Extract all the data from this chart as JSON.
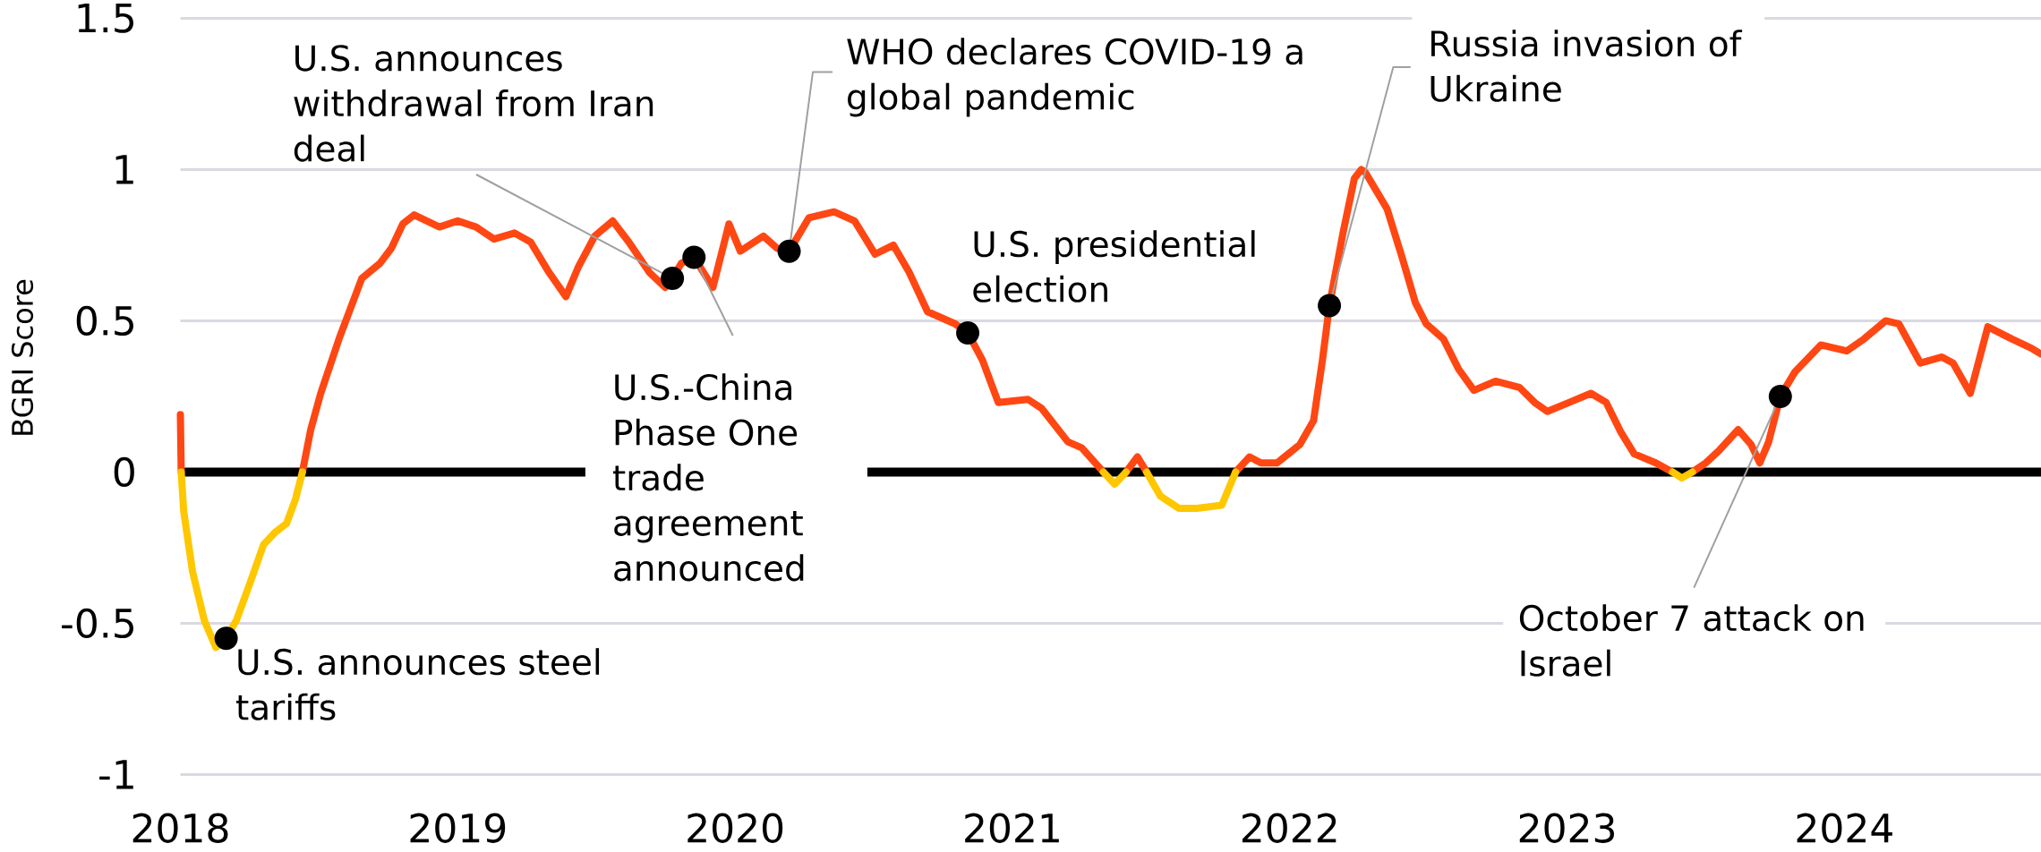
{
  "chart_data": {
    "type": "line",
    "ylabel": "BGRI Score",
    "x": [
      2018.0,
      2018.003,
      2018.012,
      2018.044,
      2018.086,
      2018.128,
      2018.165,
      2018.202,
      2018.25,
      2018.3,
      2018.341,
      2018.383,
      2018.415,
      2018.44,
      2018.47,
      2018.506,
      2018.572,
      2018.654,
      2018.72,
      2018.761,
      2018.802,
      2018.843,
      2018.934,
      2019.0,
      2019.066,
      2019.131,
      2019.205,
      2019.263,
      2019.329,
      2019.39,
      2019.436,
      2019.494,
      2019.559,
      2019.617,
      2019.691,
      2019.748,
      2019.774,
      2019.806,
      2019.852,
      2019.92,
      2019.978,
      2020.019,
      2020.102,
      2020.151,
      2020.195,
      2020.266,
      2020.357,
      2020.431,
      2020.505,
      2020.571,
      2020.628,
      2020.694,
      2020.793,
      2020.839,
      2020.892,
      2020.949,
      2021.056,
      2021.106,
      2021.2,
      2021.25,
      2021.328,
      2021.369,
      2021.41,
      2021.451,
      2021.484,
      2021.534,
      2021.6,
      2021.665,
      2021.755,
      2021.805,
      2021.855,
      2021.896,
      2021.954,
      2022.036,
      2022.086,
      2022.118,
      2022.143,
      2022.192,
      2022.233,
      2022.258,
      2022.273,
      2022.351,
      2022.405,
      2022.453,
      2022.492,
      2022.554,
      2022.609,
      2022.664,
      2022.742,
      2022.828,
      2022.883,
      2022.929,
      2023.008,
      2023.086,
      2023.141,
      2023.195,
      2023.242,
      2023.32,
      2023.38,
      2023.414,
      2023.452,
      2023.5,
      2023.547,
      2023.617,
      2023.664,
      2023.695,
      2023.727,
      2023.769,
      2023.821,
      2023.915,
      2024.008,
      2024.071,
      2024.149,
      2024.196,
      2024.274,
      2024.352,
      2024.392,
      2024.454,
      2024.517,
      2024.603,
      2024.673,
      2024.709
    ],
    "series": [
      {
        "color": "#ff4713",
        "values": [
          0.19,
          0,
          null,
          null,
          null,
          null,
          null,
          null,
          null,
          null,
          null,
          null,
          null,
          0,
          0.14,
          0.26,
          0.44,
          0.64,
          0.69,
          0.74,
          0.82,
          0.85,
          0.81,
          0.83,
          0.81,
          0.77,
          0.79,
          0.76,
          0.66,
          0.58,
          0.68,
          0.78,
          0.83,
          0.76,
          0.66,
          0.61,
          0.64,
          0.69,
          0.71,
          0.61,
          0.82,
          0.73,
          0.78,
          0.74,
          0.73,
          0.84,
          0.86,
          0.83,
          0.72,
          0.75,
          0.66,
          0.53,
          0.49,
          0.46,
          0.37,
          0.23,
          0.24,
          0.21,
          0.1,
          0.08,
          0,
          null,
          0,
          0.05,
          0,
          null,
          null,
          null,
          null,
          0,
          0.05,
          0.03,
          0.03,
          0.09,
          0.17,
          0.37,
          0.55,
          0.79,
          0.97,
          1.0,
          0.99,
          0.87,
          0.71,
          0.56,
          0.49,
          0.44,
          0.34,
          0.27,
          0.3,
          0.28,
          0.23,
          0.2,
          0.23,
          0.26,
          0.23,
          0.13,
          0.06,
          0.03,
          0,
          null,
          0,
          0.03,
          0.07,
          0.14,
          0.09,
          0.03,
          0.1,
          0.25,
          0.33,
          0.42,
          0.4,
          0.44,
          0.5,
          0.49,
          0.36,
          0.38,
          0.36,
          0.26,
          0.48,
          0.44,
          0.41,
          0.39
        ]
      },
      {
        "color": "#ffc700",
        "values": [
          null,
          0,
          -0.13,
          -0.33,
          -0.49,
          -0.58,
          -0.55,
          -0.49,
          -0.37,
          -0.24,
          -0.2,
          -0.17,
          -0.09,
          0,
          null,
          null,
          null,
          null,
          null,
          null,
          null,
          null,
          null,
          null,
          null,
          null,
          null,
          null,
          null,
          null,
          null,
          null,
          null,
          null,
          null,
          null,
          null,
          null,
          null,
          null,
          null,
          null,
          null,
          null,
          null,
          null,
          null,
          null,
          null,
          null,
          null,
          null,
          null,
          null,
          null,
          null,
          null,
          null,
          null,
          null,
          0,
          -0.04,
          0,
          null,
          0,
          -0.08,
          -0.12,
          -0.12,
          -0.11,
          0,
          null,
          null,
          null,
          null,
          null,
          null,
          null,
          null,
          null,
          null,
          null,
          null,
          null,
          null,
          null,
          null,
          null,
          null,
          null,
          null,
          null,
          null,
          null,
          null,
          null,
          null,
          null,
          null,
          0,
          -0.02,
          0,
          null,
          null,
          null,
          null,
          null,
          null,
          null,
          null,
          null,
          null,
          null,
          null,
          null,
          null,
          null,
          null,
          null,
          null,
          null,
          null,
          null
        ]
      }
    ],
    "xlim": [
      2018,
      2024.709
    ],
    "xticks": [
      2018,
      2019,
      2020,
      2021,
      2022,
      2023,
      2024
    ],
    "ylim": [
      -1,
      1.5
    ],
    "yticks": [
      -1,
      -0.5,
      0,
      0.5,
      1,
      1.5
    ],
    "grid": "y",
    "ref_lines": [
      {
        "axis": "y",
        "value": 0,
        "color": "#000000"
      }
    ],
    "annotations": [
      {
        "text": "U.S. announces steel tariffs",
        "x": 2018.165,
        "y": -0.55
      },
      {
        "text": "U.S. announces withdrawal from Iran deal",
        "x": 2019.774,
        "y": 0.64
      },
      {
        "text": "U.S.-China Phase One trade agreement announced",
        "x": 2019.852,
        "y": 0.71
      },
      {
        "text": "WHO declares COVID-19 a global pandemic",
        "x": 2020.195,
        "y": 0.73
      },
      {
        "text": "U.S. presidential election",
        "x": 2020.839,
        "y": 0.46
      },
      {
        "text": "Russia invasion of Ukraine",
        "x": 2022.143,
        "y": 0.55
      },
      {
        "text": "October 7 attack on Israel",
        "x": 2023.769,
        "y": 0.25
      }
    ]
  }
}
